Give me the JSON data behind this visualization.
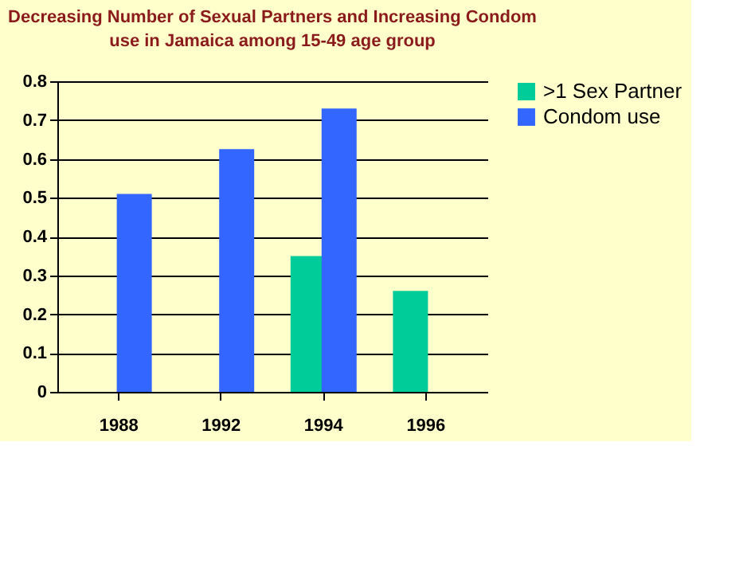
{
  "chart_data": {
    "type": "bar",
    "title": "Decreasing Number of Sexual Partners and Increasing Condom use in Jamaica among 15-49 age group",
    "categories": [
      "1988",
      "1992",
      "1994",
      "1996"
    ],
    "series": [
      {
        "name": ">1 Sex Partner",
        "color": "#00cc99",
        "values": [
          null,
          null,
          0.35,
          0.26
        ]
      },
      {
        "name": "Condom use",
        "color": "#3366ff",
        "values": [
          0.51,
          0.625,
          0.73,
          null
        ]
      }
    ],
    "ylim": [
      0,
      0.8
    ],
    "yticks": [
      0,
      0.1,
      0.2,
      0.3,
      0.4,
      0.5,
      0.6,
      0.7,
      0.8
    ],
    "grid": "y",
    "legend": "right"
  }
}
